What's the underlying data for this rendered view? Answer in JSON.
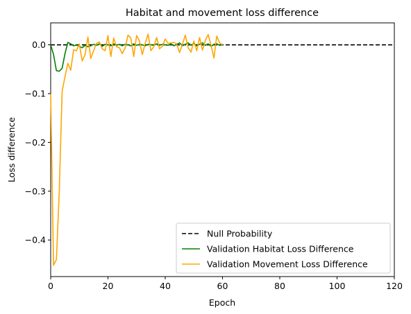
{
  "chart_data": {
    "type": "line",
    "title": "Habitat and movement loss difference",
    "xlabel": "Epoch",
    "ylabel": "Loss difference",
    "xlim": [
      0,
      120
    ],
    "ylim": [
      -0.475,
      0.045
    ],
    "xticks": [
      0,
      20,
      40,
      60,
      80,
      100,
      120
    ],
    "yticks": [
      0.0,
      -0.1,
      -0.2,
      -0.3,
      -0.4
    ],
    "ytick_labels": [
      "0.0",
      "−0.1",
      "−0.2",
      "−0.3",
      "−0.4"
    ],
    "grid": false,
    "legend_position": "bottom-right",
    "series": [
      {
        "name": "Null Probability",
        "color": "#000000",
        "dash": "dashed",
        "x": [
          0,
          120
        ],
        "y": [
          0,
          0
        ]
      },
      {
        "name": "Validation Habitat Loss Difference",
        "color": "#008000",
        "dash": "solid",
        "x": [
          0,
          1,
          2,
          3,
          4,
          5,
          6,
          7,
          8,
          9,
          10,
          11,
          12,
          13,
          14,
          15,
          16,
          17,
          18,
          19,
          20,
          21,
          22,
          23,
          24,
          25,
          26,
          27,
          28,
          29,
          30,
          31,
          32,
          33,
          34,
          35,
          36,
          37,
          38,
          39,
          40,
          41,
          42,
          43,
          44,
          45,
          46,
          47,
          48,
          49,
          50,
          51,
          52,
          53,
          54,
          55,
          56,
          57,
          58,
          59,
          60
        ],
        "y": [
          0.0,
          -0.02,
          -0.053,
          -0.054,
          -0.048,
          -0.018,
          0.005,
          0.002,
          -0.002,
          0.0,
          -0.003,
          -0.006,
          -0.001,
          -0.004,
          -0.002,
          0.001,
          -0.001,
          0.002,
          -0.003,
          0.001,
          0.0,
          -0.002,
          0.002,
          -0.001,
          0.001,
          -0.002,
          0.001,
          0.0,
          -0.002,
          0.002,
          -0.001,
          0.001,
          0.0,
          -0.002,
          0.001,
          0.0,
          -0.001,
          0.002,
          -0.001,
          0.001,
          0.0,
          -0.001,
          0.002,
          -0.002,
          0.001,
          0.004,
          -0.002,
          0.001,
          0.004,
          -0.001,
          0.003,
          -0.002,
          0.001,
          0.004,
          -0.001,
          0.002,
          -0.003,
          0.001,
          0.002,
          -0.001,
          0.0
        ]
      },
      {
        "name": "Validation Movement Loss Difference",
        "color": "#FFA500",
        "dash": "solid",
        "x": [
          0,
          1,
          2,
          3,
          4,
          5,
          6,
          7,
          8,
          9,
          10,
          11,
          12,
          13,
          14,
          15,
          16,
          17,
          18,
          19,
          20,
          21,
          22,
          23,
          24,
          25,
          26,
          27,
          28,
          29,
          30,
          31,
          32,
          33,
          34,
          35,
          36,
          37,
          38,
          39,
          40,
          41,
          42,
          43,
          44,
          45,
          46,
          47,
          48,
          49,
          50,
          51,
          52,
          53,
          54,
          55,
          56,
          57,
          58,
          59,
          60
        ],
        "y": [
          -0.1,
          -0.452,
          -0.44,
          -0.3,
          -0.095,
          -0.065,
          -0.038,
          -0.052,
          -0.01,
          -0.012,
          0.002,
          -0.033,
          -0.02,
          0.016,
          -0.028,
          -0.012,
          0.003,
          0.006,
          -0.008,
          -0.012,
          0.019,
          -0.024,
          0.014,
          -0.004,
          -0.006,
          -0.018,
          -0.006,
          0.02,
          0.014,
          -0.024,
          0.019,
          0.008,
          -0.02,
          0.003,
          0.022,
          -0.012,
          -0.004,
          0.015,
          -0.008,
          -0.003,
          0.012,
          0.003,
          0.004,
          0.005,
          0.002,
          -0.016,
          0.001,
          0.02,
          -0.006,
          -0.015,
          0.008,
          -0.012,
          0.015,
          -0.011,
          0.009,
          0.021,
          -0.001,
          -0.027,
          0.018,
          0.004,
          0.0
        ]
      }
    ]
  }
}
